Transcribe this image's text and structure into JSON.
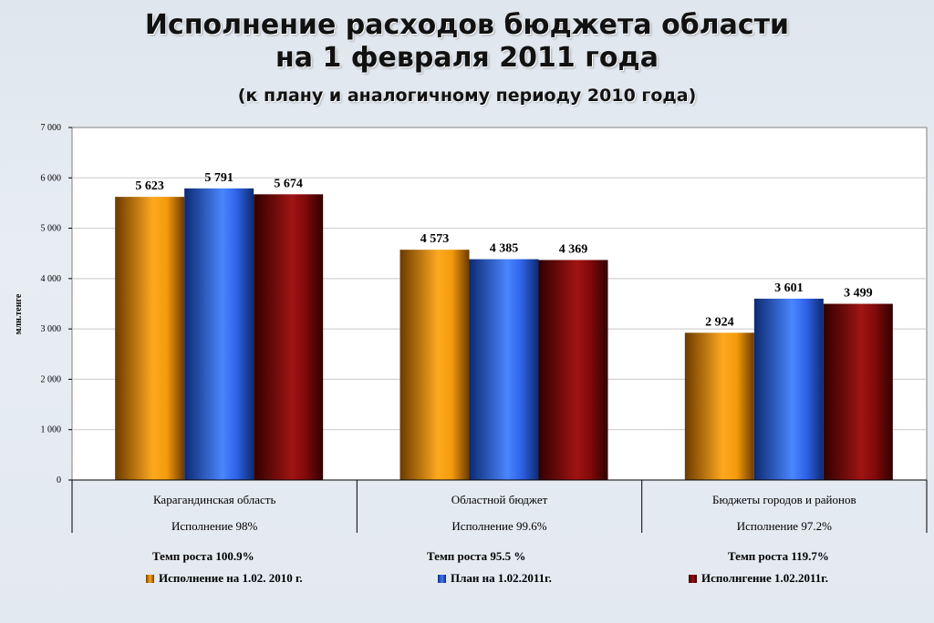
{
  "title_line1": "Исполнение расходов бюджета области",
  "title_line2": "на 1 февраля 2011 года",
  "subtitle": "(к плану и аналогичному периоду 2010 года)",
  "chart_data": {
    "type": "bar",
    "ylabel": "млн.тенге",
    "ylim": [
      0,
      7000
    ],
    "yticks": [
      "0",
      "1 000",
      "2 000",
      "3 000",
      "4 000",
      "5 000",
      "6 000",
      "7 000"
    ],
    "grid": true,
    "categories": [
      "Карагандинская область",
      "Областной бюджет",
      "Бюджеты городов и районов"
    ],
    "category_sublabels": [
      "Исполнение 98%",
      "Исполнение 99.6%",
      "Исполнение 97.2%"
    ],
    "series": [
      {
        "name": "Исполнение на 1.02. 2010 г.",
        "color": "#f39a0c",
        "values": [
          5623,
          4573,
          2924
        ],
        "labels": [
          "5 623",
          "4 573",
          "2 924"
        ]
      },
      {
        "name": "План  на 1.02.2011г.",
        "color": "#2f63e8",
        "values": [
          5791,
          4385,
          3601
        ],
        "labels": [
          "5 791",
          "4 385",
          "3 601"
        ]
      },
      {
        "name": "Исполнгение 1.02.2011г.",
        "color": "#7f0a0a",
        "values": [
          5674,
          4369,
          3499
        ],
        "labels": [
          "5 674",
          "4 369",
          "3 499"
        ]
      }
    ],
    "legend_position": "bottom"
  },
  "growth": [
    "Темп роста 100.9%",
    "Темп роста 95.5 %",
    "Темп роста 119.7%"
  ]
}
